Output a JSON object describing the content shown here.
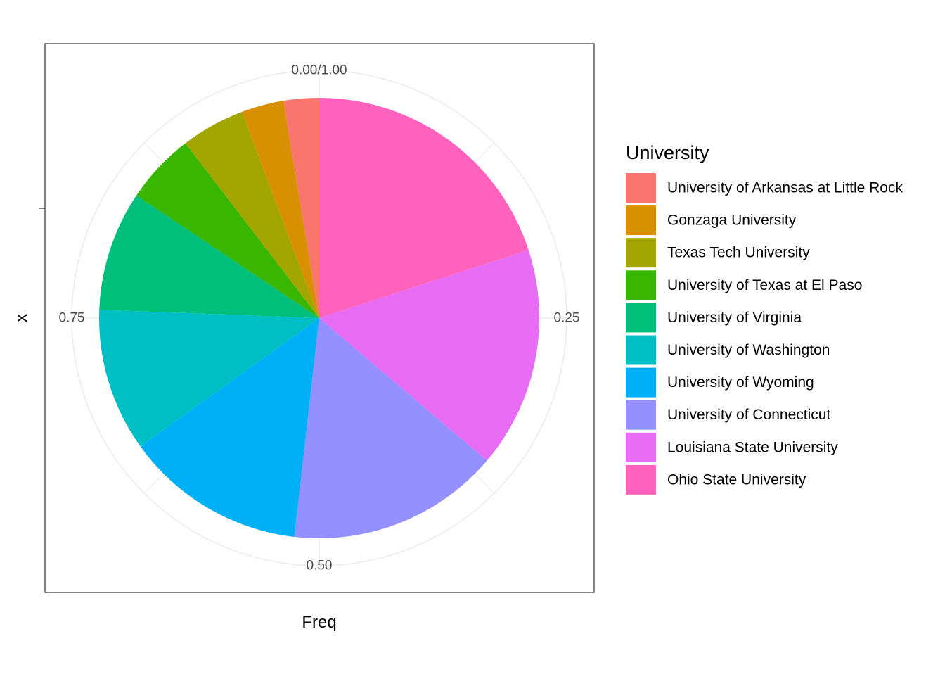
{
  "chart_data": {
    "type": "pie",
    "xlabel": "Freq",
    "ylabel": "x",
    "theta_ticks": [
      {
        "value": 0.0,
        "label": "0.00/1.00"
      },
      {
        "value": 0.25,
        "label": "0.25"
      },
      {
        "value": 0.5,
        "label": "0.50"
      },
      {
        "value": 0.75,
        "label": "0.75"
      }
    ],
    "grid": true,
    "legend": {
      "title": "University",
      "placement": "right"
    },
    "slices": [
      {
        "label": "University of Arkansas at Little Rock",
        "value": 0.026,
        "color": "#F8766D"
      },
      {
        "label": "Gonzaga University",
        "value": 0.031,
        "color": "#D89000"
      },
      {
        "label": "Texas Tech University",
        "value": 0.047,
        "color": "#A3A500"
      },
      {
        "label": "University of Texas at El Paso",
        "value": 0.052,
        "color": "#39B600"
      },
      {
        "label": "University of Virginia",
        "value": 0.088,
        "color": "#00BF7D"
      },
      {
        "label": "University of Washington",
        "value": 0.105,
        "color": "#00BFC4"
      },
      {
        "label": "University of Wyoming",
        "value": 0.133,
        "color": "#00B0F6"
      },
      {
        "label": "University of Connecticut",
        "value": 0.156,
        "color": "#9590FF"
      },
      {
        "label": "Louisiana State University",
        "value": 0.162,
        "color": "#E76BF3"
      },
      {
        "label": "Ohio State University",
        "value": 0.2,
        "color": "#FF62BC"
      }
    ]
  }
}
